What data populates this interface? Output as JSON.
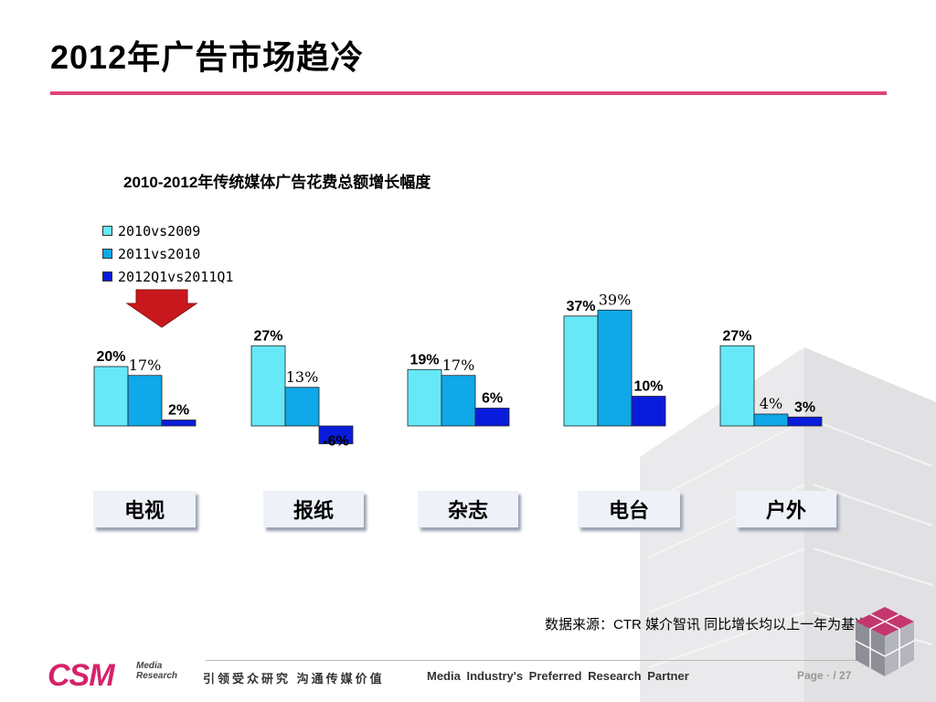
{
  "title": "2012年广告市场趋冷",
  "chart_data": {
    "type": "bar",
    "title": "2010-2012年传统媒体广告花费总额增长幅度",
    "categories": [
      "电视",
      "报纸",
      "杂志",
      "电台",
      "户外"
    ],
    "series": [
      {
        "name": "2010vs2009",
        "values": [
          20,
          27,
          19,
          37,
          27
        ],
        "labels": [
          "20%",
          "27%",
          "19%",
          "37%",
          "27%"
        ]
      },
      {
        "name": "2011vs2010",
        "values": [
          17,
          13,
          17,
          39,
          4
        ],
        "labels": [
          "17%",
          "13%",
          "17%",
          "39%",
          "4%"
        ]
      },
      {
        "name": "2012Q1vs2011Q1",
        "values": [
          2,
          -6,
          6,
          10,
          3
        ],
        "labels": [
          "2%",
          "-6%",
          "6%",
          "10%",
          "3%"
        ]
      }
    ],
    "colors": [
      "#66e8f7",
      "#0fa8e8",
      "#0a1cdb"
    ],
    "unit": "%",
    "legend": "top-left",
    "grid": false,
    "highlight_category": "电视"
  },
  "source": "数据来源：CTR 媒介智讯  同比增长均以上一年为基准",
  "footer": {
    "logo_text": "CSM",
    "logo_sub1": "Media",
    "logo_sub2": "Research",
    "slogan_cn": "引领受众研究 沟通传媒价值",
    "slogan_en": "Media Industry's Preferred Research Partner",
    "page": "Page · / 27"
  }
}
